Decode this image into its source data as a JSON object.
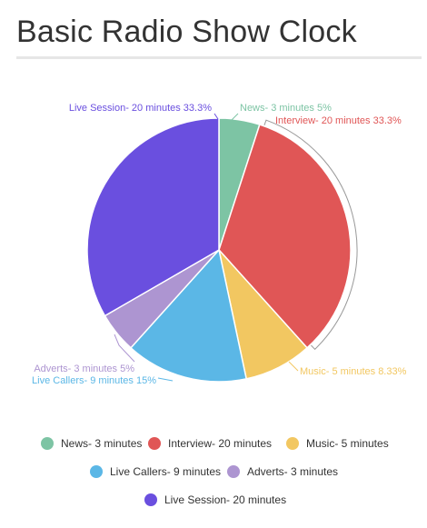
{
  "page": {
    "title": "Basic Radio Show Clock"
  },
  "chart_data": {
    "type": "pie",
    "start_angle_deg": 0,
    "direction": "clockwise",
    "slices": [
      {
        "name": "News- 3 minutes",
        "minutes": 3,
        "label": "News- 3 minutes 5%",
        "color": "#7dc4a4"
      },
      {
        "name": "Interview- 20 minutes",
        "minutes": 20,
        "label": "Interview- 20 minutes 33.3%",
        "color": "#e05656"
      },
      {
        "name": "Music- 5 minutes",
        "minutes": 5,
        "label": "Music- 5 minutes 8.33%",
        "color": "#f2c761"
      },
      {
        "name": "Live Callers- 9 minutes",
        "minutes": 9,
        "label": "Live Callers- 9 minutes 15%",
        "color": "#5bb7e6"
      },
      {
        "name": "Adverts- 3 minutes",
        "minutes": 3,
        "label": "Adverts- 3 minutes 5%",
        "color": "#ad95d1"
      },
      {
        "name": "Live Session- 20 minutes",
        "minutes": 20,
        "label": "Live Session- 20 minutes 33.3%",
        "color": "#6a4fdf"
      }
    ],
    "legend": {
      "placement": "bottom",
      "rows": [
        [
          "News- 3 minutes",
          "Interview- 20 minutes",
          "Music- 5 minutes"
        ],
        [
          "Live Callers- 9 minutes",
          "Adverts- 3 minutes"
        ],
        [
          "Live Session- 20 minutes"
        ]
      ]
    }
  }
}
